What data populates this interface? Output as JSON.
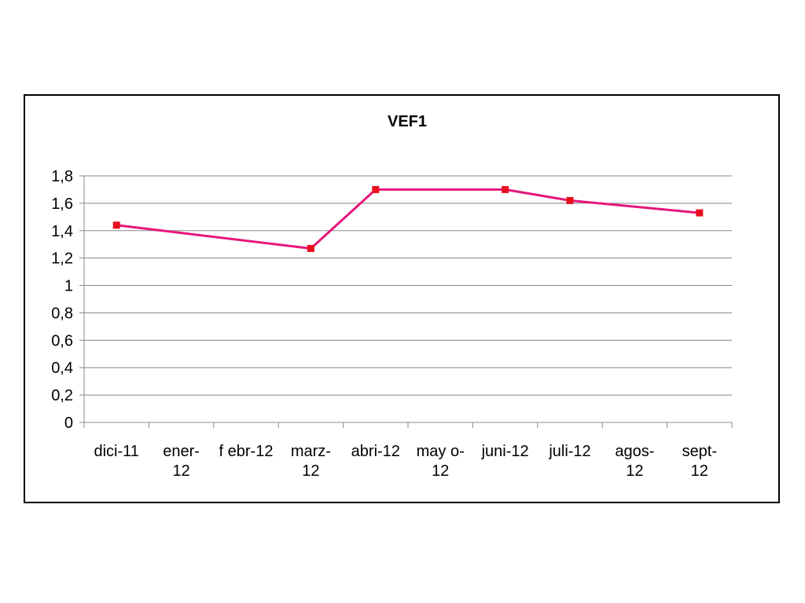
{
  "chart_data": {
    "type": "line",
    "title": "VEF1",
    "xlabel": "",
    "ylabel": "",
    "categories": [
      [
        "dici-11"
      ],
      [
        "ener-",
        "12"
      ],
      [
        "f ebr-12"
      ],
      [
        "marz-",
        "12"
      ],
      [
        "abri-12"
      ],
      [
        "may o-",
        "12"
      ],
      [
        "juni-12"
      ],
      [
        "juli-12"
      ],
      [
        "agos-",
        "12"
      ],
      [
        "sept-",
        "12"
      ]
    ],
    "series": [
      {
        "color": "#e6177a",
        "marker_color": "#e8101e",
        "values": [
          1.44,
          null,
          null,
          1.27,
          1.7,
          null,
          1.7,
          1.62,
          null,
          1.53
        ]
      }
    ],
    "yticks": [
      "0",
      "0,2",
      "0,4",
      "0,6",
      "0,8",
      "1",
      "1,2",
      "1,4",
      "1,6",
      "1,8"
    ],
    "ylim": [
      0,
      1.8
    ],
    "grid": true,
    "legend": "none"
  }
}
